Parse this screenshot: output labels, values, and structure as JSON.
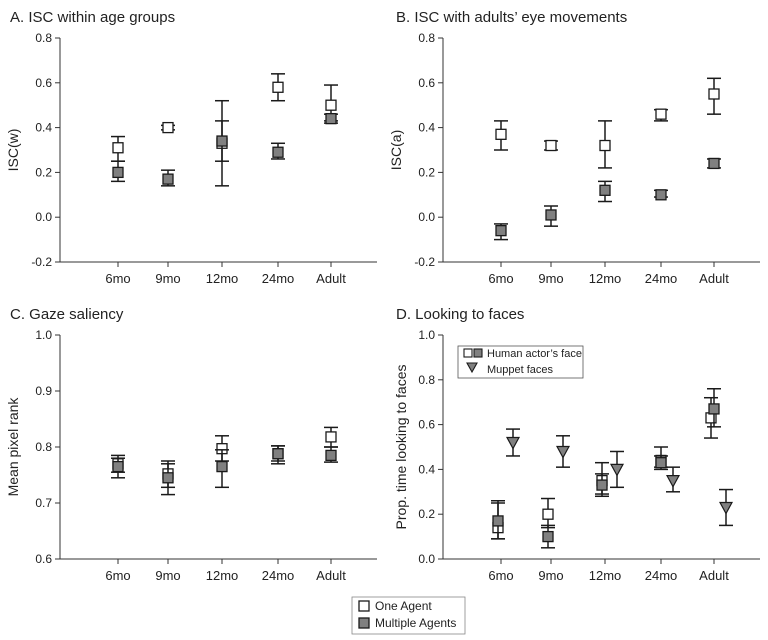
{
  "chart_data": [
    {
      "type": "scatter",
      "title": "A. ISC within age groups",
      "ylabel": "ISC(w)",
      "categories": [
        "6mo",
        "9mo",
        "12mo",
        "24mo",
        "Adult"
      ],
      "ylim": [
        -0.2,
        0.8
      ],
      "yticks": [
        "0.8",
        "0.6",
        "0.4",
        "0.2",
        "0.0",
        "-0.2"
      ],
      "series": [
        {
          "values": [
            0.31,
            0.4,
            0.33,
            0.58,
            0.5
          ],
          "lo": [
            0.25,
            0.39,
            0.14,
            0.52,
            0.43
          ],
          "hi": [
            0.36,
            0.41,
            0.52,
            0.64,
            0.59
          ]
        },
        {
          "values": [
            0.2,
            0.17,
            0.34,
            0.29,
            0.44
          ],
          "lo": [
            0.16,
            0.14,
            0.25,
            0.26,
            0.42
          ],
          "hi": [
            0.25,
            0.21,
            0.43,
            0.33,
            0.46
          ]
        }
      ]
    },
    {
      "type": "scatter",
      "title": "B. ISC with adults’ eye movements",
      "ylabel": "ISC(a)",
      "categories": [
        "6mo",
        "9mo",
        "12mo",
        "24mo",
        "Adult"
      ],
      "ylim": [
        -0.2,
        0.8
      ],
      "yticks": [
        "0.8",
        "0.6",
        "0.4",
        "0.2",
        "0.0",
        "-0.2"
      ],
      "series": [
        {
          "values": [
            0.37,
            0.32,
            0.32,
            0.46,
            0.55
          ],
          "lo": [
            0.3,
            0.3,
            0.22,
            0.43,
            0.46
          ],
          "hi": [
            0.43,
            0.34,
            0.43,
            0.48,
            0.62
          ]
        },
        {
          "values": [
            -0.06,
            0.01,
            0.12,
            0.1,
            0.24
          ],
          "lo": [
            -0.1,
            -0.04,
            0.07,
            0.09,
            0.22
          ],
          "hi": [
            -0.03,
            0.05,
            0.16,
            0.12,
            0.26
          ]
        }
      ]
    },
    {
      "type": "scatter",
      "title": "C. Gaze saliency",
      "ylabel": "Mean pixel rank",
      "categories": [
        "6mo",
        "9mo",
        "12mo",
        "24mo",
        "Adult"
      ],
      "ylim": [
        0.6,
        1.0
      ],
      "yticks": [
        "1.0",
        "0.9",
        "0.8",
        "0.7",
        "0.6"
      ],
      "series": [
        {
          "values": [
            0.77,
            0.752,
            0.797,
            0.788,
            0.818
          ],
          "lo": [
            0.755,
            0.728,
            0.775,
            0.775,
            0.8
          ],
          "hi": [
            0.785,
            0.775,
            0.82,
            0.802,
            0.835
          ]
        },
        {
          "values": [
            0.765,
            0.745,
            0.765,
            0.788,
            0.785
          ],
          "lo": [
            0.745,
            0.715,
            0.728,
            0.77,
            0.773
          ],
          "hi": [
            0.78,
            0.77,
            0.795,
            0.802,
            0.8
          ]
        }
      ]
    },
    {
      "type": "scatter",
      "title": "D. Looking to faces",
      "ylabel": "Prop. time looking to faces",
      "categories": [
        "6mo",
        "9mo",
        "12mo",
        "24mo",
        "Adult"
      ],
      "ylim": [
        0.0,
        1.0
      ],
      "yticks": [
        "1.0",
        "0.8",
        "0.6",
        "0.4",
        "0.2",
        "0.0"
      ],
      "legend": [
        {
          "name": "Human actor’s face",
          "marker": "square-pair"
        },
        {
          "name": "Muppet faces",
          "marker": "triangle"
        }
      ],
      "series": [
        {
          "values": [
            0.14,
            0.2,
            0.35,
            0.44,
            0.63
          ],
          "lo": [
            0.09,
            0.14,
            0.29,
            0.41,
            0.54
          ],
          "hi": [
            0.26,
            0.27,
            0.43,
            0.5,
            0.72
          ]
        },
        {
          "values": [
            0.17,
            0.1,
            0.33,
            0.43,
            0.67
          ],
          "lo": [
            0.09,
            0.05,
            0.28,
            0.4,
            0.59
          ],
          "hi": [
            0.25,
            0.15,
            0.38,
            0.46,
            0.76
          ]
        },
        {
          "values": [
            0.52,
            0.48,
            0.4,
            0.35,
            0.23
          ],
          "lo": [
            0.46,
            0.41,
            0.32,
            0.3,
            0.15
          ],
          "hi": [
            0.58,
            0.55,
            0.48,
            0.41,
            0.31
          ]
        }
      ]
    }
  ],
  "legend": [
    {
      "name": "One Agent"
    },
    {
      "name": "Multiple Agents"
    }
  ],
  "colors": {
    "open_marker": "#ffffff",
    "filled_marker": "#808080",
    "stroke": "#1a1a1a"
  }
}
